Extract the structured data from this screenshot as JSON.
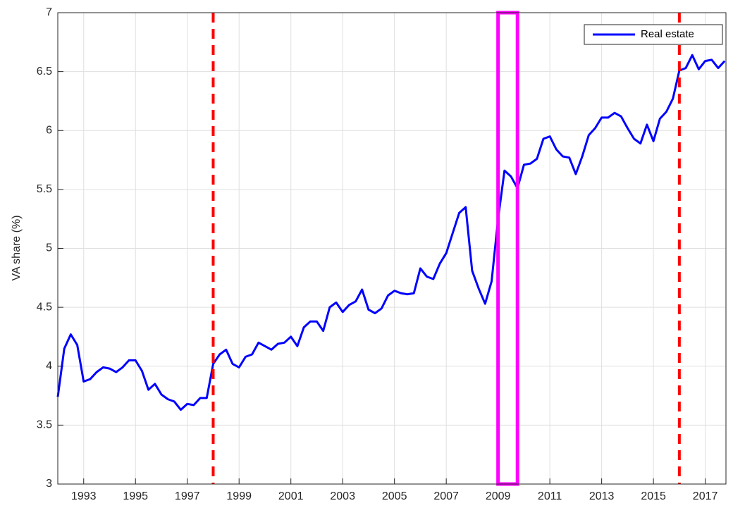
{
  "chart_data": {
    "type": "line",
    "ylabel": "VA share (%)",
    "xlim": [
      1992,
      2017.8
    ],
    "ylim": [
      3,
      7
    ],
    "xticks": [
      1993,
      1995,
      1997,
      1999,
      2001,
      2003,
      2005,
      2007,
      2009,
      2011,
      2013,
      2015,
      2017
    ],
    "yticks": [
      3,
      3.5,
      4,
      4.5,
      5,
      5.5,
      6,
      6.5,
      7
    ],
    "grid": true,
    "legend": "top-right",
    "vlines": [
      1998,
      2016
    ],
    "vline_color": "#ff0000",
    "highlight": [
      2009,
      2009.75
    ],
    "highlight_color": "#ff00ff",
    "series": [
      {
        "name": "Real estate",
        "color": "#0000ff",
        "x_start": 1992,
        "x_step": 0.25,
        "values": [
          3.74,
          4.15,
          4.27,
          4.18,
          3.87,
          3.89,
          3.95,
          3.99,
          3.98,
          3.95,
          3.99,
          4.05,
          4.05,
          3.96,
          3.8,
          3.85,
          3.76,
          3.72,
          3.7,
          3.63,
          3.68,
          3.67,
          3.73,
          3.73,
          4.02,
          4.1,
          4.14,
          4.02,
          3.99,
          4.08,
          4.1,
          4.2,
          4.17,
          4.14,
          4.19,
          4.2,
          4.25,
          4.17,
          4.33,
          4.38,
          4.38,
          4.3,
          4.5,
          4.54,
          4.46,
          4.52,
          4.55,
          4.65,
          4.48,
          4.45,
          4.49,
          4.6,
          4.64,
          4.62,
          4.61,
          4.62,
          4.83,
          4.76,
          4.74,
          4.87,
          4.96,
          5.13,
          5.3,
          5.35,
          4.81,
          4.66,
          4.53,
          4.72,
          5.25,
          5.66,
          5.61,
          5.51,
          5.71,
          5.72,
          5.76,
          5.93,
          5.95,
          5.84,
          5.78,
          5.77,
          5.63,
          5.78,
          5.96,
          6.02,
          6.11,
          6.11,
          6.15,
          6.12,
          6.02,
          5.93,
          5.89,
          6.05,
          5.91,
          6.1,
          6.16,
          6.27,
          6.51,
          6.53,
          6.64,
          6.52,
          6.59,
          6.6,
          6.53,
          6.59
        ]
      }
    ]
  }
}
